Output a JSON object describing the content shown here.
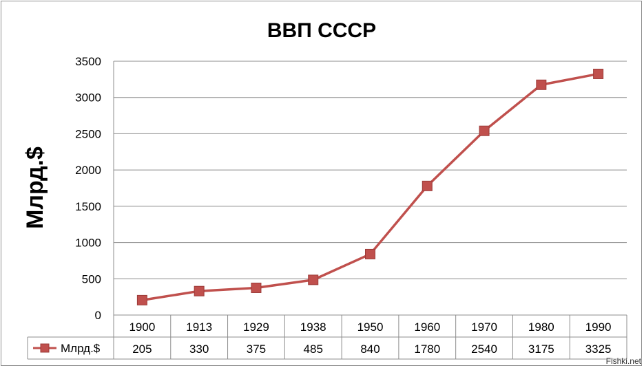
{
  "chart_data": {
    "type": "line",
    "title": "ВВП СССР",
    "ylabel": "Млрд.$",
    "xlabel": "",
    "categories": [
      "1900",
      "1913",
      "1929",
      "1938",
      "1950",
      "1960",
      "1970",
      "1980",
      "1990"
    ],
    "series": [
      {
        "name": "Млрд.$",
        "values": [
          205,
          330,
          375,
          485,
          840,
          1780,
          2540,
          3175,
          3325
        ],
        "color": "#c0504d",
        "marker": "square"
      }
    ],
    "ylim": [
      0,
      3500
    ],
    "yticks": [
      0,
      500,
      1000,
      1500,
      2000,
      2500,
      3000,
      3500
    ],
    "grid": "horizontal",
    "data_table": true
  },
  "watermark": "Fishki.net"
}
